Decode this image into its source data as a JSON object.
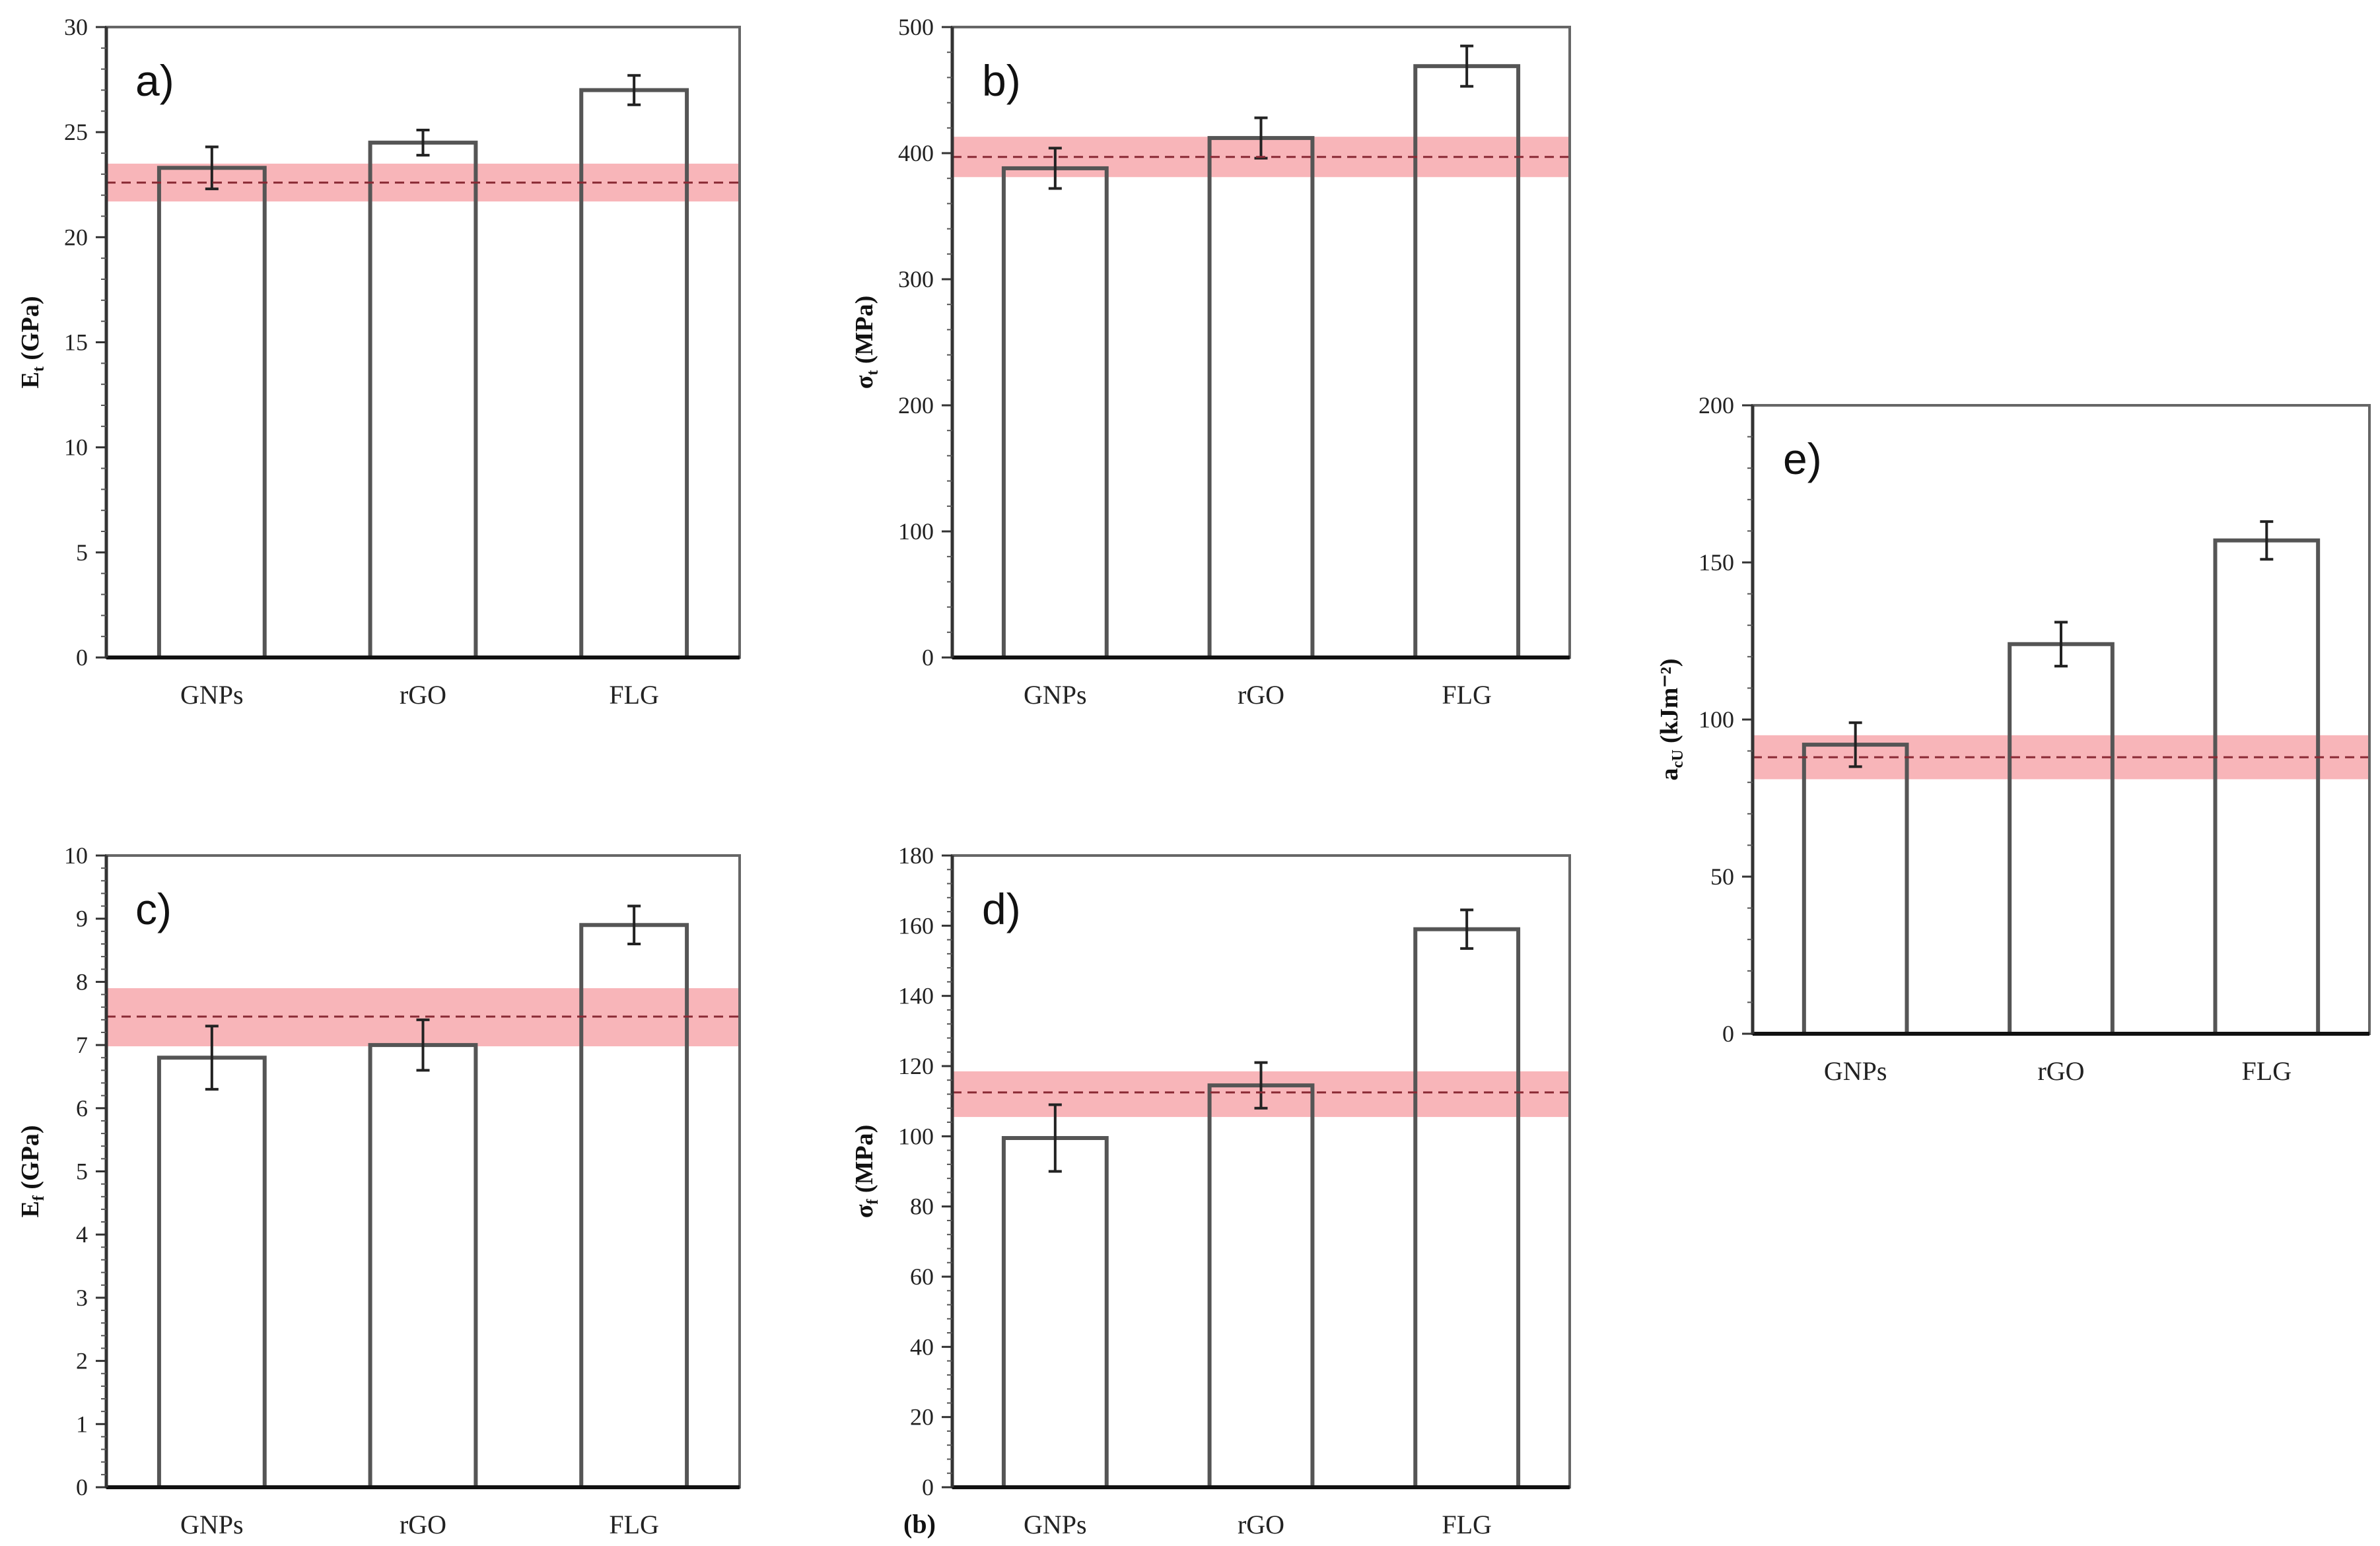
{
  "stray_label": "(b)",
  "chart_data": [
    {
      "id": "a",
      "type": "bar",
      "panel_label": "a)",
      "ylabel_main": "E",
      "ylabel_sub": "t",
      "ylabel_unit": " (GPa)",
      "categories": [
        "GNPs",
        "rGO",
        "FLG"
      ],
      "values": [
        23.3,
        24.5,
        27.0
      ],
      "errors": [
        1.0,
        0.6,
        0.7
      ],
      "ylim": [
        0,
        30
      ],
      "yticks": [
        0,
        5,
        10,
        15,
        20,
        25,
        30
      ],
      "yticklabels": [
        "0",
        "5",
        "10",
        "15",
        "20",
        "25",
        "30"
      ],
      "reference": {
        "value": 22.6,
        "band": [
          21.7,
          23.5
        ]
      }
    },
    {
      "id": "b",
      "type": "bar",
      "panel_label": "b)",
      "ylabel_main": "σ",
      "ylabel_sub": "t",
      "ylabel_unit": " (MPa)",
      "categories": [
        "GNPs",
        "rGO",
        "FLG"
      ],
      "values": [
        388,
        412,
        469
      ],
      "errors": [
        16,
        16,
        16
      ],
      "ylim": [
        0,
        500
      ],
      "yticks": [
        0,
        100,
        200,
        300,
        400,
        500
      ],
      "yticklabels": [
        "0",
        "100",
        "200",
        "300",
        "400",
        "500"
      ],
      "reference": {
        "value": 397,
        "band": [
          381,
          413
        ]
      }
    },
    {
      "id": "c",
      "type": "bar",
      "panel_label": "c)",
      "ylabel_main": "E",
      "ylabel_sub": "f",
      "ylabel_unit": " (GPa)",
      "categories": [
        "GNPs",
        "rGO",
        "FLG"
      ],
      "values": [
        6.8,
        7.0,
        8.9
      ],
      "errors": [
        0.5,
        0.4,
        0.3
      ],
      "ylim": [
        0,
        10
      ],
      "yticks": [
        0,
        1,
        2,
        3,
        4,
        5,
        6,
        7,
        8,
        9,
        10
      ],
      "yticklabels": [
        "0",
        "1",
        "2",
        "3",
        "4",
        "5",
        "6",
        "7",
        "8",
        "9",
        "10"
      ],
      "reference": {
        "value": 7.45,
        "band": [
          6.98,
          7.9
        ]
      }
    },
    {
      "id": "d",
      "type": "bar",
      "panel_label": "d)",
      "ylabel_main": "σ",
      "ylabel_sub": "f",
      "ylabel_unit": " (MPa)",
      "categories": [
        "GNPs",
        "rGO",
        "FLG"
      ],
      "values": [
        99.5,
        114.5,
        159
      ],
      "errors": [
        9.5,
        6.5,
        5.5
      ],
      "ylim": [
        0,
        180
      ],
      "yticks": [
        0,
        20,
        40,
        60,
        80,
        100,
        120,
        140,
        160,
        180
      ],
      "yticklabels": [
        "0",
        "20",
        "40",
        "60",
        "80",
        "100",
        "120",
        "140",
        "160",
        "180"
      ],
      "reference": {
        "value": 112.5,
        "band": [
          105.5,
          118.5
        ]
      }
    },
    {
      "id": "e",
      "type": "bar",
      "panel_label": "e)",
      "ylabel_main": "a",
      "ylabel_sub": "cU",
      "ylabel_unit": " (kJm⁻²)",
      "categories": [
        "GNPs",
        "rGO",
        "FLG"
      ],
      "values": [
        92,
        124,
        157
      ],
      "errors": [
        7,
        7,
        6
      ],
      "ylim": [
        0,
        200
      ],
      "yticks": [
        0,
        50,
        100,
        150,
        200
      ],
      "yticklabels": [
        "0",
        "50",
        "100",
        "150",
        "200"
      ],
      "reference": {
        "value": 88,
        "band": [
          81,
          95
        ]
      }
    }
  ]
}
